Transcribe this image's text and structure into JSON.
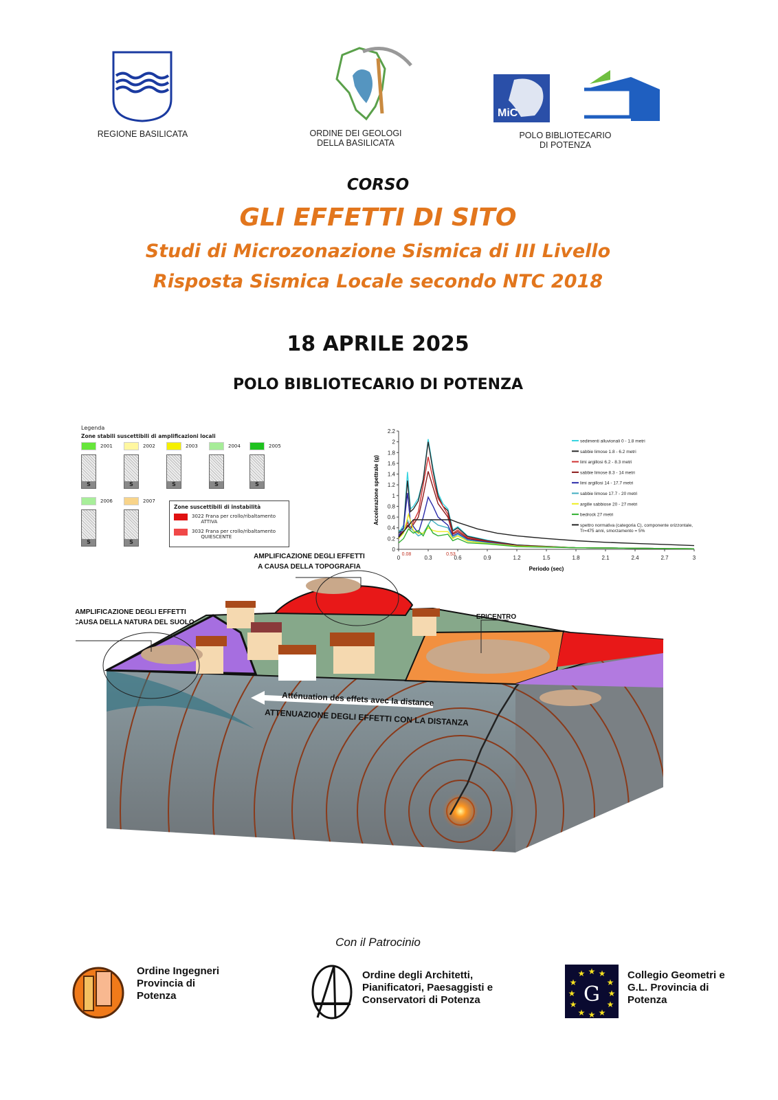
{
  "header": {
    "logos": [
      {
        "name": "regione-basilicata",
        "caption": "REGIONE BASILICATA"
      },
      {
        "name": "ordine-geologi",
        "caption_lines": [
          "ORDINE DEI GEOLOGI",
          "DELLA BASILICATA"
        ]
      },
      {
        "name": "mic",
        "logo_text": "MiC"
      },
      {
        "name": "polo-bibliotecario",
        "caption_lines": [
          "POLO BIBLIOTECARIO",
          "DI POTENZA"
        ]
      }
    ]
  },
  "course": {
    "kicker": "CORSO",
    "title": "GLI EFFETTI DI SITO",
    "subtitle1": "Studi di Microzonazione Sismica di III Livello",
    "subtitle2": "Risposta Sismica Locale secondo NTC 2018",
    "date": "18 APRILE 2025",
    "venue": "POLO BIBLIOTECARIO DI POTENZA",
    "accent_color": "#E2761D"
  },
  "legend": {
    "title": "Legenda",
    "stable_heading": "Zone stabili suscettibili di amplificazioni locali",
    "stable_zones": [
      {
        "code": "2001",
        "color": "#66e63a"
      },
      {
        "code": "2002",
        "color": "#fff7a0"
      },
      {
        "code": "2003",
        "color": "#f5f000"
      },
      {
        "code": "2004",
        "color": "#a6ec98"
      },
      {
        "code": "2005",
        "color": "#1fc21f"
      },
      {
        "code": "2006",
        "color": "#a8ee9a"
      },
      {
        "code": "2007",
        "color": "#f8d48a"
      }
    ],
    "unstable_heading": "Zone suscettibili di instabilità",
    "unstable_zones": [
      {
        "code": "3022",
        "label": "Frana per crollo/ribaltamento",
        "state": "ATTIVA",
        "color": "#e01010"
      },
      {
        "code": "3032",
        "label": "Frana per crollo/ribaltamento",
        "state": "QUIESCENTE",
        "color": "#f04848"
      }
    ]
  },
  "chart_data": {
    "type": "line",
    "xlabel": "Periodo (sec)",
    "ylabel": "Accelerazione spettrale (g)",
    "xlim": [
      0,
      3
    ],
    "ylim": [
      0,
      2.2
    ],
    "xticks": [
      "0",
      "0.3",
      "0.6",
      "0.9",
      "1.2",
      "1.5",
      "1.8",
      "2.1",
      "2.4",
      "2.7",
      "3"
    ],
    "yticks": [
      "0",
      "0.2",
      "0.4",
      "0.6",
      "0.8",
      "1",
      "1.2",
      "1.4",
      "1.6",
      "1.8",
      "2",
      "2.2"
    ],
    "annotations": [
      {
        "x": 0.08,
        "text": "0.08"
      },
      {
        "x": 0.53,
        "text": "0.53"
      }
    ],
    "legend_position": "top-right",
    "grid": false,
    "series": [
      {
        "name": "sedimenti alluvionali 0 - 1.8 metri",
        "color": "#38d4e0",
        "x": [
          0,
          0.05,
          0.06,
          0.09,
          0.12,
          0.15,
          0.2,
          0.25,
          0.3,
          0.35,
          0.4,
          0.45,
          0.5,
          0.55,
          0.6,
          0.7,
          0.9,
          1.2,
          1.8,
          2.4,
          3
        ],
        "y": [
          0.3,
          0.45,
          0.65,
          1.44,
          0.75,
          0.8,
          0.95,
          1.3,
          2.05,
          1.5,
          1.05,
          0.85,
          0.75,
          0.36,
          0.42,
          0.25,
          0.17,
          0.08,
          0.03,
          0.02,
          0.01
        ]
      },
      {
        "name": "sabbie limose 1.8 - 6.2 metri",
        "color": "#2a2a2a",
        "x": [
          0,
          0.05,
          0.09,
          0.12,
          0.15,
          0.2,
          0.25,
          0.3,
          0.35,
          0.4,
          0.45,
          0.5,
          0.55,
          0.6,
          0.7,
          0.9,
          1.2,
          1.8,
          2.4,
          3
        ],
        "y": [
          0.3,
          0.4,
          1.28,
          0.7,
          0.75,
          0.9,
          1.3,
          2.0,
          1.45,
          1.0,
          0.8,
          0.72,
          0.34,
          0.4,
          0.24,
          0.16,
          0.08,
          0.03,
          0.02,
          0.01
        ]
      },
      {
        "name": "limi argillosi 6.2 - 8.3 metri",
        "color": "#d03030",
        "x": [
          0,
          0.05,
          0.09,
          0.12,
          0.2,
          0.25,
          0.3,
          0.35,
          0.4,
          0.5,
          0.55,
          0.6,
          0.7,
          0.9,
          1.2,
          1.8,
          2.4,
          3
        ],
        "y": [
          0.25,
          0.35,
          0.5,
          0.4,
          0.7,
          1.2,
          1.72,
          1.3,
          0.95,
          0.65,
          0.3,
          0.36,
          0.22,
          0.15,
          0.07,
          0.03,
          0.02,
          0.01
        ]
      },
      {
        "name": "sabbie limose 8.3 - 14 metri",
        "color": "#8b1a1a",
        "x": [
          0,
          0.05,
          0.09,
          0.12,
          0.2,
          0.25,
          0.3,
          0.35,
          0.4,
          0.5,
          0.55,
          0.6,
          0.7,
          0.9,
          1.2,
          1.8,
          2.4,
          3
        ],
        "y": [
          0.25,
          0.32,
          0.45,
          0.38,
          0.6,
          1.0,
          1.45,
          1.15,
          0.85,
          0.6,
          0.28,
          0.33,
          0.2,
          0.14,
          0.07,
          0.03,
          0.02,
          0.01
        ]
      },
      {
        "name": "limi argillosi 14 - 17.7 metri",
        "color": "#2a2aa8",
        "x": [
          0,
          0.05,
          0.09,
          0.12,
          0.2,
          0.25,
          0.3,
          0.35,
          0.4,
          0.5,
          0.55,
          0.6,
          0.7,
          0.9,
          1.2,
          1.8,
          2.4,
          3
        ],
        "y": [
          0.25,
          0.4,
          1.05,
          0.5,
          0.3,
          0.6,
          0.97,
          0.8,
          0.6,
          0.45,
          0.25,
          0.3,
          0.18,
          0.13,
          0.06,
          0.03,
          0.02,
          0.01
        ]
      },
      {
        "name": "sabbie limose 17.7 - 20 metri",
        "color": "#40aec0",
        "x": [
          0,
          0.05,
          0.09,
          0.12,
          0.2,
          0.25,
          0.3,
          0.33,
          0.4,
          0.5,
          0.55,
          0.6,
          0.7,
          0.9,
          1.2,
          1.8,
          2.4,
          3
        ],
        "y": [
          0.35,
          0.35,
          0.55,
          0.4,
          0.25,
          0.3,
          0.45,
          0.55,
          0.45,
          0.4,
          0.22,
          0.28,
          0.17,
          0.12,
          0.06,
          0.03,
          0.02,
          0.01
        ]
      },
      {
        "name": "argille sabbiose 20 - 27 metri",
        "color": "#eeee20",
        "x": [
          0,
          0.05,
          0.1,
          0.15,
          0.2,
          0.25,
          0.3,
          0.35,
          0.4,
          0.5,
          0.55,
          0.6,
          0.7,
          0.9,
          1.2,
          1.8,
          2.4,
          3
        ],
        "y": [
          0.2,
          0.3,
          0.65,
          0.35,
          0.3,
          0.3,
          0.4,
          0.35,
          0.33,
          0.33,
          0.2,
          0.25,
          0.15,
          0.11,
          0.06,
          0.03,
          0.02,
          0.01
        ]
      },
      {
        "name": "bedrock 27 metri",
        "color": "#30b030",
        "x": [
          0,
          0.05,
          0.1,
          0.15,
          0.2,
          0.25,
          0.3,
          0.35,
          0.4,
          0.5,
          0.55,
          0.6,
          0.7,
          0.9,
          1.2,
          1.8,
          2.4,
          3
        ],
        "y": [
          0.12,
          0.2,
          0.38,
          0.3,
          0.35,
          0.25,
          0.45,
          0.3,
          0.25,
          0.28,
          0.16,
          0.2,
          0.12,
          0.1,
          0.05,
          0.03,
          0.02,
          0.01
        ]
      },
      {
        "name": "spettro normativa (categoria C), componente orizzontale, Tr=475 anni, smorzamento = 5%",
        "color": "#222222",
        "x": [
          0,
          0.15,
          0.53,
          0.6,
          0.8,
          1.0,
          1.2,
          1.5,
          1.8,
          2.1,
          2.4,
          2.7,
          3
        ],
        "y": [
          0.22,
          0.55,
          0.55,
          0.5,
          0.38,
          0.3,
          0.25,
          0.2,
          0.16,
          0.13,
          0.11,
          0.09,
          0.07
        ]
      }
    ]
  },
  "diagram": {
    "label_topography": [
      "AMPLIFICAZIONE DEGLI EFFETTI",
      "A CAUSA DELLA TOPOGRAFIA"
    ],
    "label_soil": [
      "AMPLIFICAZIONE DEGLI EFFETTI",
      "A CAUSA DELLA NATURA DEL SUOLO"
    ],
    "label_epicenter": "EPICENTRO",
    "label_attenuation_fr": "Atténuation des effets avec la distance",
    "label_attenuation_it": "ATTENUAZIONE DEGLI EFFETTI CON LA DISTANZA"
  },
  "patronage": {
    "heading": "Con il Patrocinio",
    "sponsors": [
      {
        "name": "ordine-ingegneri",
        "lines": [
          "Ordine Ingegneri",
          "Provincia di",
          "Potenza"
        ]
      },
      {
        "name": "ordine-architetti",
        "lines": [
          "Ordine degli Architetti,",
          "Pianificatori, Paesaggisti e",
          "Conservatori di Potenza"
        ]
      },
      {
        "name": "collegio-geometri",
        "lines": [
          "Collegio Geometri e",
          "G.L. Provincia di",
          "Potenza"
        ]
      }
    ]
  }
}
